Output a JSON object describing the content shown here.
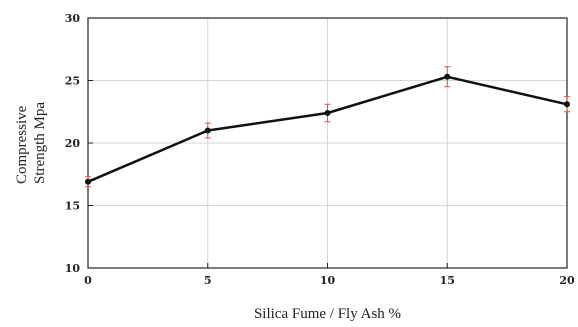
{
  "chart_data": {
    "type": "line",
    "title": "",
    "xlabel": "Silica Fume / Fly Ash %",
    "ylabel_lines": [
      "Compressive",
      "Strength Mpa"
    ],
    "x": [
      0,
      5,
      10,
      15,
      20
    ],
    "series": [
      {
        "values": [
          16.9,
          21.0,
          22.4,
          25.3,
          23.1
        ],
        "error": [
          0.4,
          0.6,
          0.7,
          0.8,
          0.6
        ],
        "color": "#111111",
        "error_color": "#e05050"
      }
    ],
    "xticks": [
      0,
      5,
      10,
      15,
      20
    ],
    "yticks": [
      10,
      15,
      20,
      25,
      30
    ],
    "xlim": [
      0,
      20
    ],
    "ylim": [
      10,
      30
    ],
    "grid": true,
    "legend": "none"
  }
}
